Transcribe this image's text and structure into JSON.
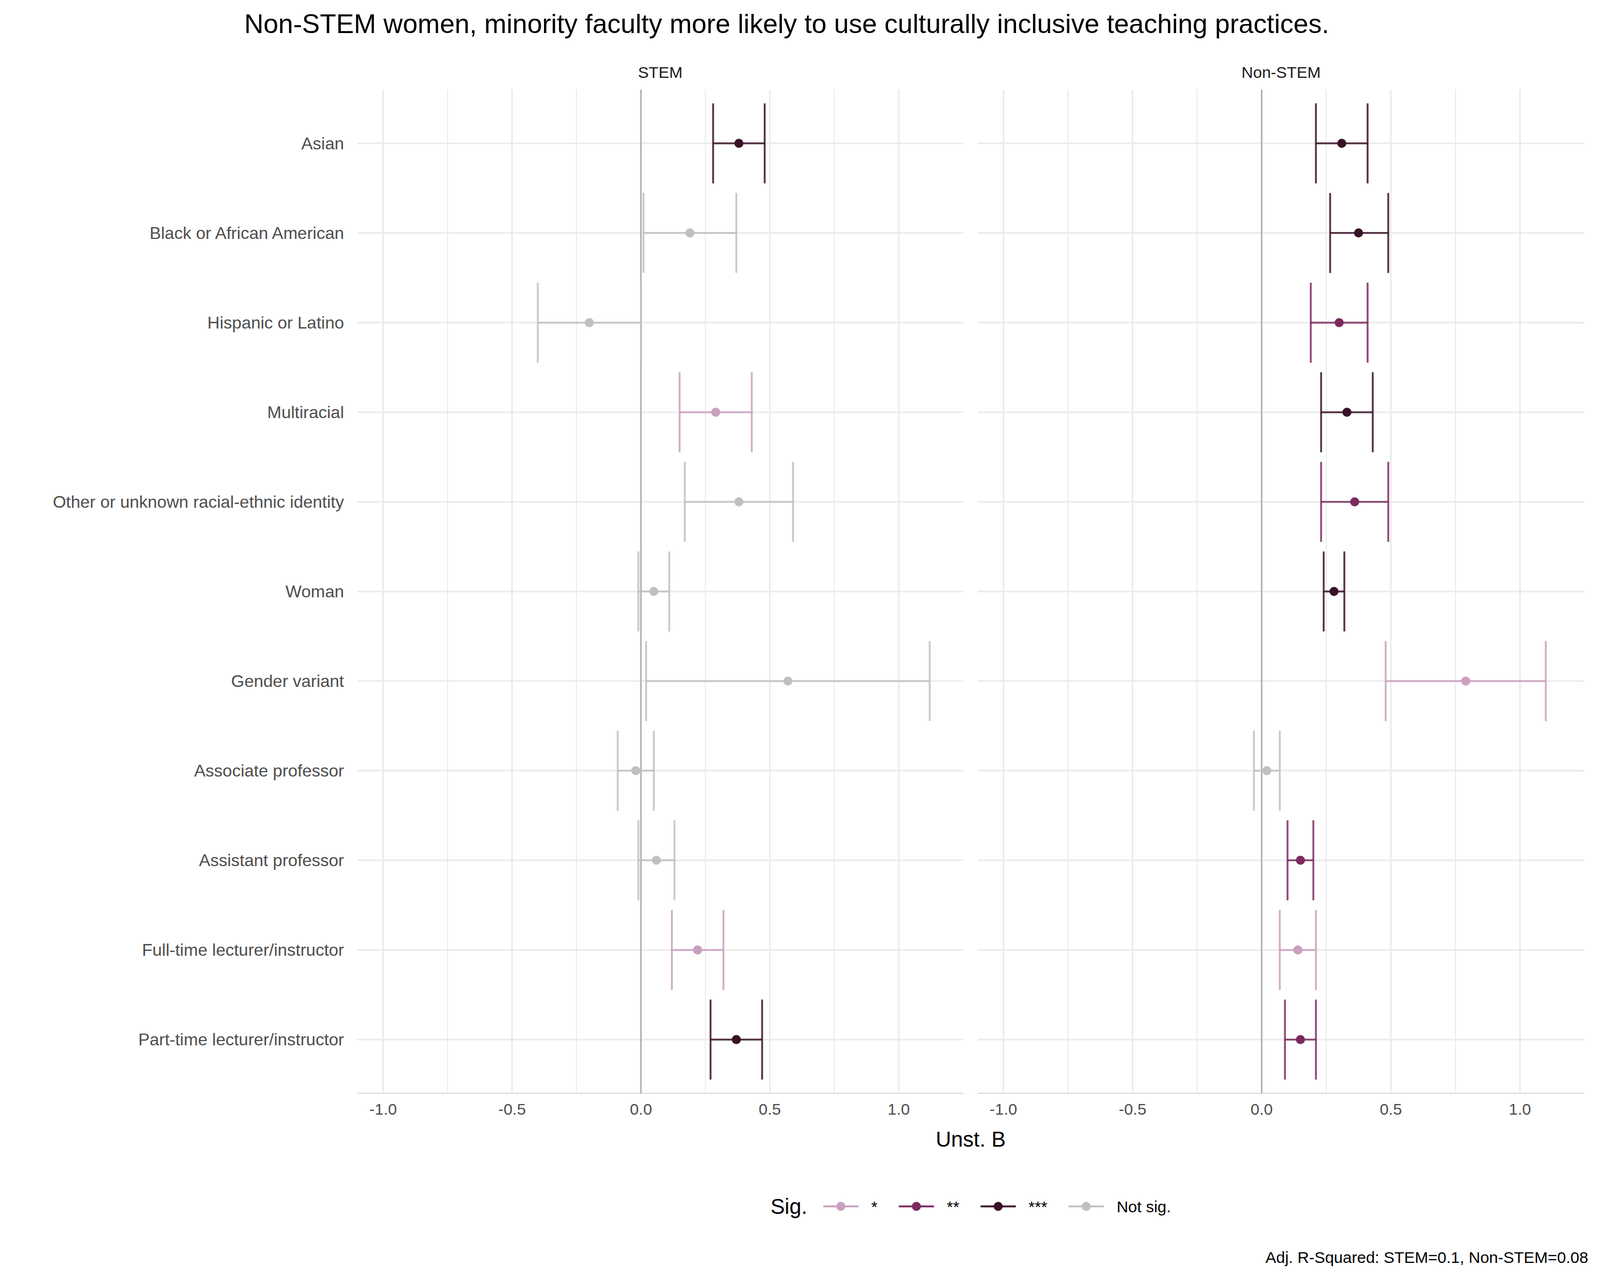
{
  "chart_data": {
    "type": "dot_whisker",
    "orientation": "horizontal",
    "title": "Non-STEM women, minority faculty more likely to use culturally inclusive teaching practices.",
    "x_label": "Unst. B",
    "categories": [
      "Asian",
      "Black or African American",
      "Hispanic or Latino",
      "Multiracial",
      "Other or unknown racial-ethnic identity",
      "Woman",
      "Gender variant",
      "Associate professor",
      "Assistant professor",
      "Full-time lecturer/instructor",
      "Part-time lecturer/instructor"
    ],
    "xlim": [
      -1.1,
      1.25
    ],
    "xticks": [
      {
        "value": -1,
        "label": "-1.0"
      },
      {
        "value": -0.5,
        "label": "-0.5"
      },
      {
        "value": 0,
        "label": "0.0"
      },
      {
        "value": 0.5,
        "label": "0.5"
      },
      {
        "value": 1,
        "label": "1.0"
      }
    ],
    "minor_xticks": [
      -0.75,
      -0.25,
      0.25,
      0.75
    ],
    "reference_line": 0,
    "grid": true,
    "legend": "bottom",
    "legend_title": "Sig.",
    "significance_levels": [
      {
        "name": "*",
        "color": "#c9a0bd"
      },
      {
        "name": "**",
        "color": "#7b2a5f"
      },
      {
        "name": "***",
        "color": "#3a1228"
      },
      {
        "name": "Not sig.",
        "color": "#c0c0c0"
      }
    ],
    "panels": [
      {
        "name": "STEM",
        "values": [
          0.38,
          0.19,
          -0.2,
          0.29,
          0.38,
          0.05,
          0.57,
          -0.02,
          0.06,
          0.22,
          0.37
        ],
        "error_low": [
          0.28,
          0.01,
          -0.4,
          0.15,
          0.17,
          -0.01,
          0.02,
          -0.09,
          -0.01,
          0.12,
          0.27
        ],
        "error_high": [
          0.48,
          0.37,
          0.0,
          0.43,
          0.59,
          0.11,
          1.12,
          0.05,
          0.13,
          0.32,
          0.47
        ],
        "sig": [
          "***",
          "Not sig.",
          "Not sig.",
          "*",
          "Not sig.",
          "Not sig.",
          "Not sig.",
          "Not sig.",
          "Not sig.",
          "*",
          "***"
        ]
      },
      {
        "name": "Non-STEM",
        "values": [
          0.31,
          0.375,
          0.3,
          0.33,
          0.36,
          0.28,
          0.79,
          0.02,
          0.15,
          0.14,
          0.15
        ],
        "error_low": [
          0.21,
          0.265,
          0.19,
          0.23,
          0.23,
          0.24,
          0.48,
          -0.03,
          0.1,
          0.07,
          0.09
        ],
        "error_high": [
          0.41,
          0.49,
          0.41,
          0.43,
          0.49,
          0.32,
          1.1,
          0.07,
          0.2,
          0.21,
          0.21
        ],
        "sig": [
          "***",
          "***",
          "**",
          "***",
          "**",
          "***",
          "*",
          "Not sig.",
          "**",
          "*",
          "**"
        ]
      }
    ],
    "note": "Adj. R-Squared: STEM=0.1, Non-STEM=0.08"
  }
}
